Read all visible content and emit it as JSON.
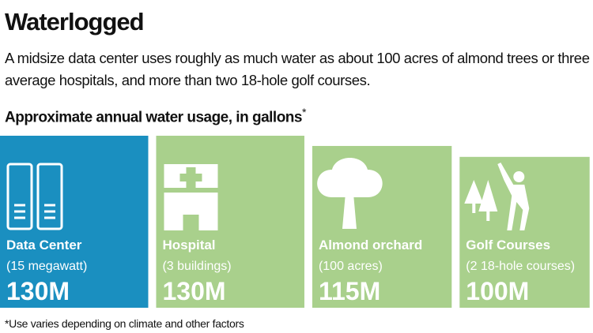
{
  "chart_data": {
    "type": "square",
    "title": "Waterlogged",
    "subtitle": "A midsize data center uses roughly as much water as about 100 acres of almond trees or three average hospitals, and more than two 18-hole golf courses.",
    "chart_title": "Approximate annual water usage, in gallons",
    "chart_title_mark": "*",
    "categories": [
      "Data Center",
      "Hospital",
      "Almond orchard",
      "Golf Courses"
    ],
    "details": [
      "(15 megawatt)",
      "(3 buildings)",
      "(100 acres)",
      "(2 18-hole courses)"
    ],
    "values": [
      130000000,
      130000000,
      115000000,
      100000000
    ],
    "value_labels": [
      "130M",
      "130M",
      "115M",
      "100M"
    ],
    "colors": [
      "#1a8fc0",
      "#a9d08c",
      "#a9d08c",
      "#a9d08c"
    ],
    "footnote": "*Use varies depending on climate and other factors"
  }
}
